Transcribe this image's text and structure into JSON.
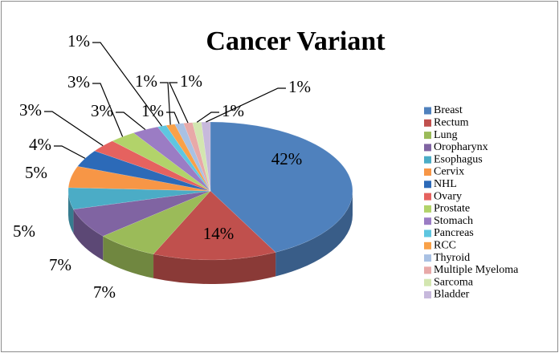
{
  "chart_data": {
    "type": "pie",
    "title": "Cancer Variant",
    "categories": [
      "Breast",
      "Rectum",
      "Lung",
      "Oropharynx",
      "Esophagus",
      "Cervix",
      "NHL",
      "Ovary",
      "Prostate",
      "Stomach",
      "Pancreas",
      "RCC",
      "Thyroid",
      "Multiple Myeloma",
      "Sarcoma",
      "Bladder"
    ],
    "values": [
      42,
      14,
      7,
      7,
      5,
      5,
      4,
      3,
      3,
      3,
      1,
      1,
      1,
      1,
      1,
      1
    ],
    "value_labels": [
      "42%",
      "14%",
      "7%",
      "7%",
      "5%",
      "5%",
      "4%",
      "3%",
      "3%",
      "3%",
      "1%",
      "1%",
      "1%",
      "1%",
      "1%",
      "1%"
    ],
    "colors": [
      "#4f81bd",
      "#c0504d",
      "#9bbb59",
      "#8064a2",
      "#4bacc6",
      "#f79646",
      "#2c6ab8",
      "#e5625f",
      "#b2d36a",
      "#9b7cc4",
      "#5ec6e0",
      "#f9a148",
      "#a9c1e3",
      "#e8a9a8",
      "#d3e6b0",
      "#c7b9dc"
    ],
    "legend": "right"
  }
}
